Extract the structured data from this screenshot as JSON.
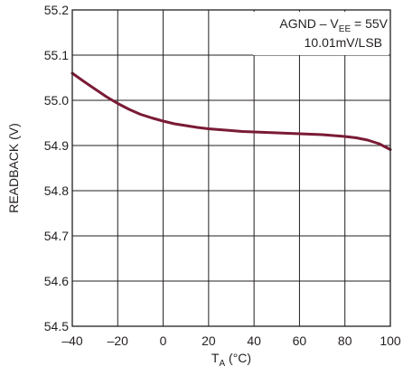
{
  "chart_data": {
    "type": "line",
    "title": "",
    "xlabel": {
      "main": "T",
      "sub": "A",
      "unit": " (°C)"
    },
    "ylabel": "READBACK (V)",
    "xlim": [
      -40,
      100
    ],
    "ylim": [
      54.5,
      55.2
    ],
    "grid": true,
    "x_ticks": [
      "–40",
      "–20",
      "0",
      "20",
      "40",
      "60",
      "80",
      "100"
    ],
    "y_ticks": [
      "54.5",
      "54.6",
      "54.7",
      "54.8",
      "54.9",
      "55.0",
      "55.1",
      "55.2"
    ],
    "annotations": [
      {
        "main": "AGND – V",
        "sub": "EE",
        "rest": " = 55V"
      },
      {
        "main": "10.01mV/LSB"
      }
    ],
    "series": [
      {
        "color": "#7a1b35",
        "x": [
          -40,
          -35,
          -30,
          -25,
          -20,
          -15,
          -10,
          -5,
          0,
          5,
          10,
          15,
          20,
          25,
          30,
          35,
          40,
          45,
          50,
          55,
          60,
          65,
          70,
          75,
          80,
          85,
          90,
          95,
          100
        ],
        "y": [
          55.06,
          55.042,
          55.025,
          55.008,
          54.993,
          54.98,
          54.969,
          54.961,
          54.954,
          54.948,
          54.944,
          54.94,
          54.937,
          54.935,
          54.933,
          54.931,
          54.93,
          54.929,
          54.928,
          54.927,
          54.926,
          54.925,
          54.924,
          54.922,
          54.92,
          54.917,
          54.912,
          54.904,
          54.891
        ]
      }
    ]
  }
}
